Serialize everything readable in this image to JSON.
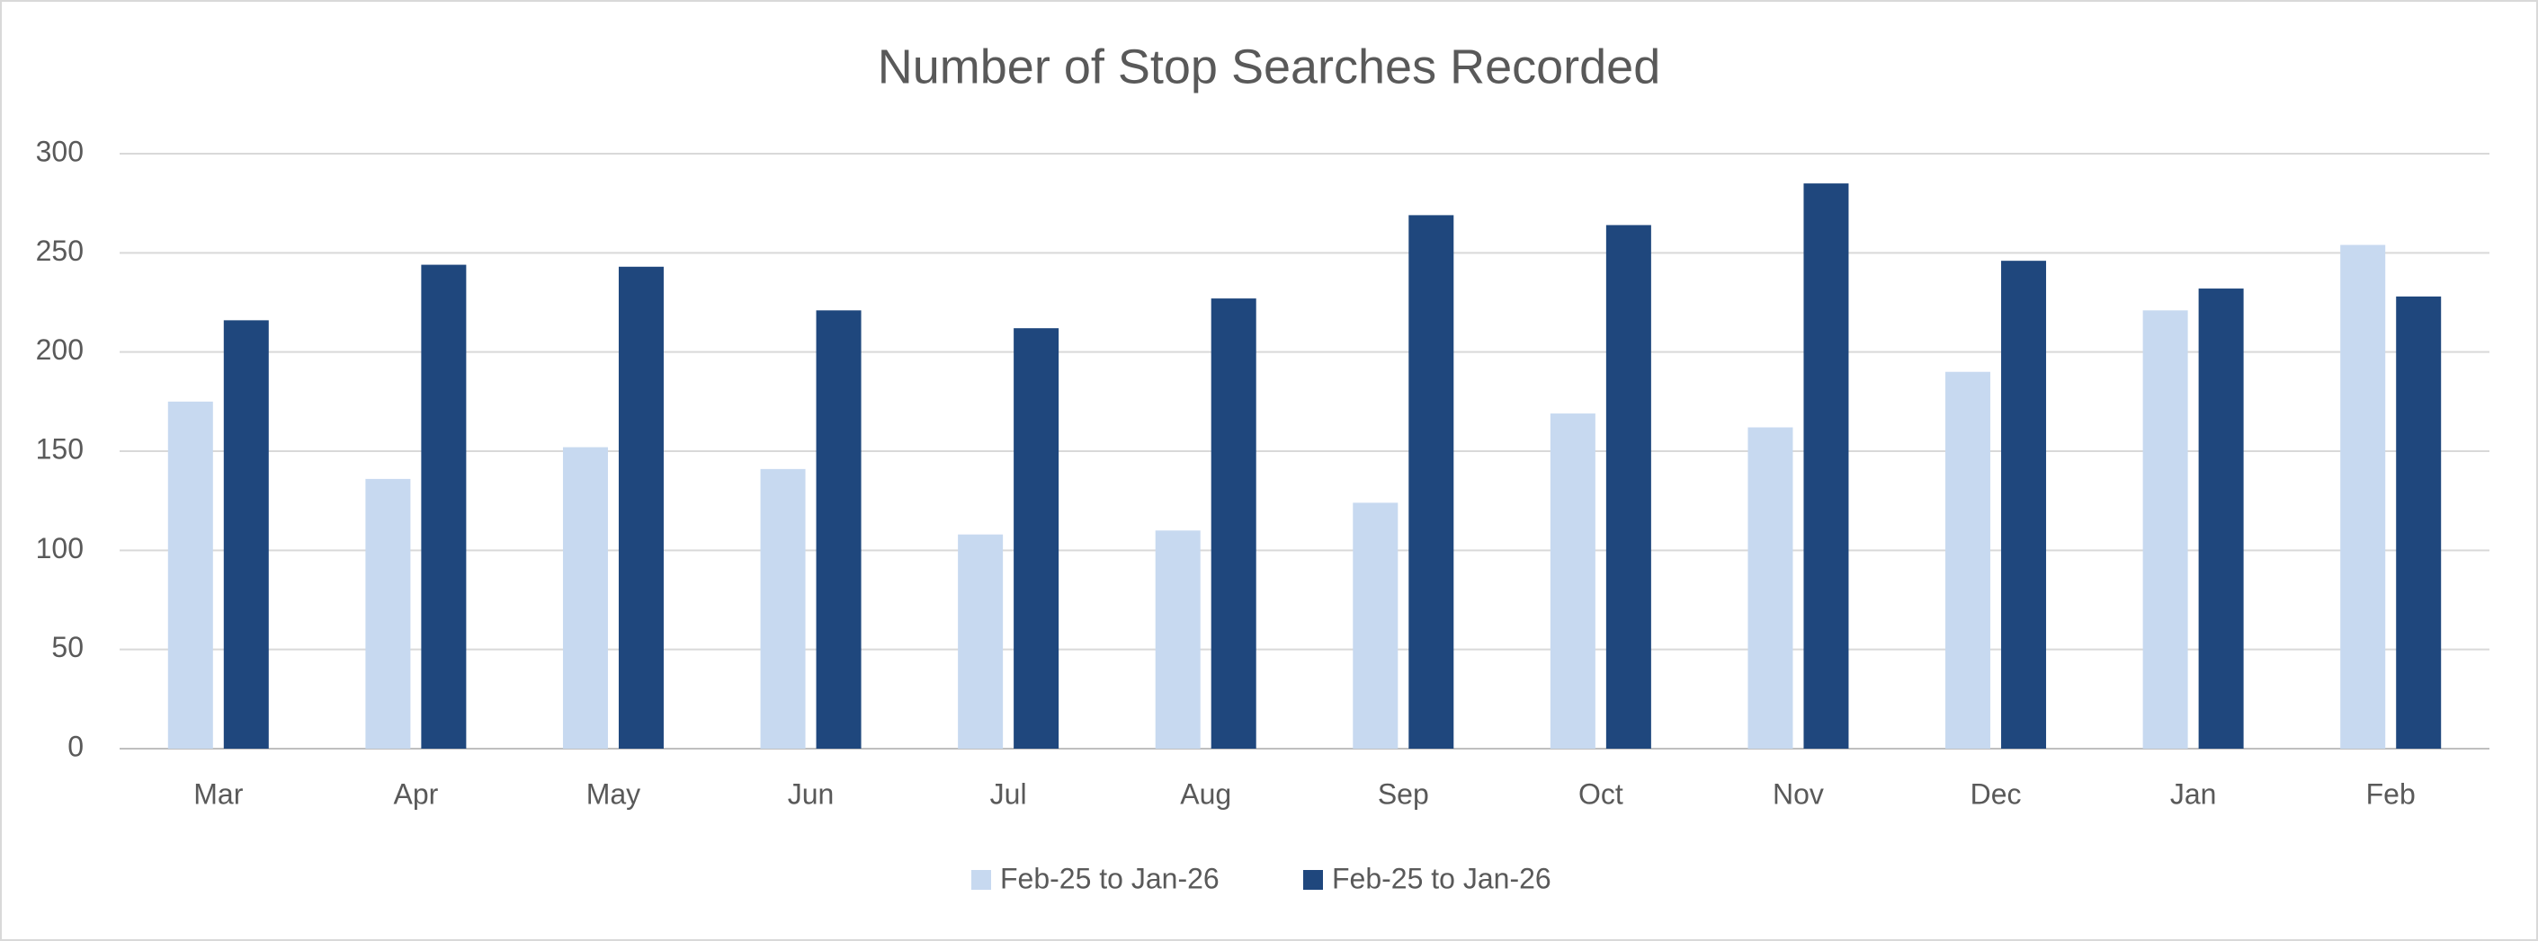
{
  "chart_data": {
    "type": "bar",
    "title": "Number of Stop Searches Recorded",
    "categories": [
      "Mar",
      "Apr",
      "May",
      "Jun",
      "Jul",
      "Aug",
      "Sep",
      "Oct",
      "Nov",
      "Dec",
      "Jan",
      "Feb"
    ],
    "series": [
      {
        "name": "Feb-25 to Jan-26",
        "color": "#c7d9f0",
        "values": [
          175,
          136,
          152,
          141,
          108,
          110,
          124,
          169,
          162,
          190,
          221,
          254
        ]
      },
      {
        "name": "Feb-25 to Jan-26",
        "color": "#1f477d",
        "values": [
          216,
          244,
          243,
          221,
          212,
          227,
          269,
          264,
          285,
          246,
          232,
          228
        ]
      }
    ],
    "ylim": [
      0,
      300
    ],
    "yticks": [
      0,
      50,
      100,
      150,
      200,
      250,
      300
    ],
    "grid": true,
    "legend": "bottom"
  }
}
